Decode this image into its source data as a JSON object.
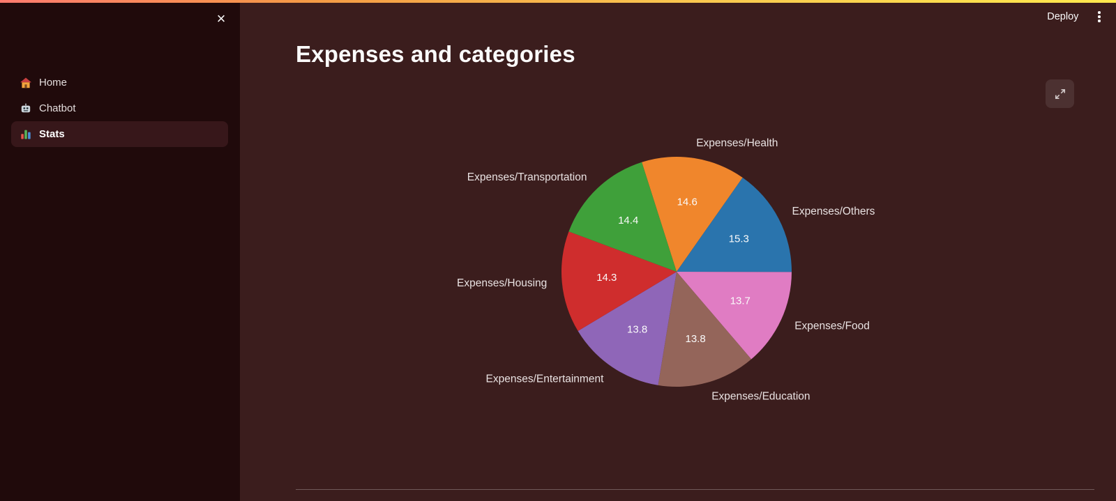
{
  "app": {
    "deploy_label": "Deploy",
    "menu_icon": "kebab-menu-icon",
    "decoration_gradient": [
      "#ff7b6f",
      "#f49a45",
      "#f9c74f",
      "#ffe94e"
    ]
  },
  "sidebar": {
    "close_glyph": "×",
    "items": [
      {
        "label": "Home",
        "icon": "home-icon",
        "selected": false
      },
      {
        "label": "Chatbot",
        "icon": "robot-icon",
        "selected": false
      },
      {
        "label": "Stats",
        "icon": "stats-icon",
        "selected": true
      }
    ]
  },
  "main": {
    "title": "Expenses and categories",
    "expand_icon": "expand-icon"
  },
  "colors": {
    "background": "#3b1d1d",
    "sidebar_background": "#200a0b",
    "sidebar_selected": "#37171a",
    "text": "#fafafa"
  },
  "chart_data": {
    "type": "pie",
    "title": "Expenses and categories",
    "labels": [
      "Expenses/Health",
      "Expenses/Others",
      "Expenses/Food",
      "Expenses/Education",
      "Expenses/Entertainment",
      "Expenses/Housing",
      "Expenses/Transportation"
    ],
    "values": [
      14.6,
      15.3,
      13.7,
      13.8,
      13.8,
      14.3,
      14.4
    ],
    "colors": [
      "#f0862c",
      "#2a74ad",
      "#e07cc3",
      "#94655a",
      "#8f66b8",
      "#cf2d2d",
      "#3fa03a"
    ],
    "start_angle_deg": -17.6,
    "direction": "clockwise",
    "legend": "none",
    "value_format": "one-decimal",
    "value_label_radius_ratio": 0.61,
    "outer_label_radius_ratio": 1.13
  }
}
